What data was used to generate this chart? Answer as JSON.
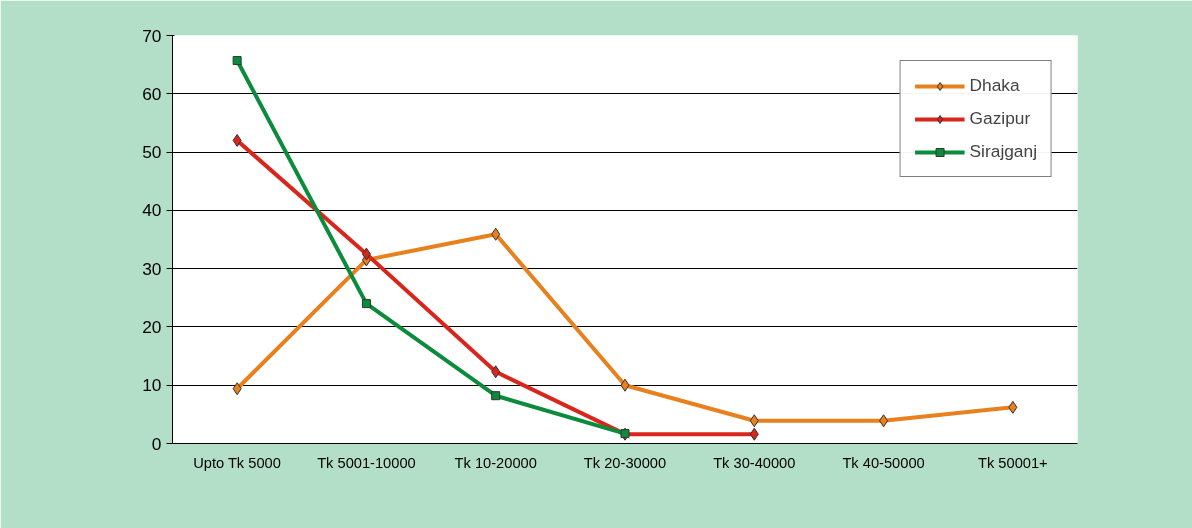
{
  "chart_data": {
    "type": "line",
    "categories": [
      "Upto Tk 5000",
      "Tk 5001-10000",
      "Tk 10-20000",
      "Tk 20-30000",
      "Tk 30-40000",
      "Tk 40-50000",
      "Tk 50001+"
    ],
    "series": [
      {
        "name": "Dhaka",
        "color": "#e8801e",
        "marker": "diamond",
        "values": [
          9.4,
          31.5,
          35.9,
          10,
          3.9,
          3.9,
          6.2
        ]
      },
      {
        "name": "Gazipur",
        "color": "#d9261c",
        "marker": "diamond",
        "values": [
          52,
          32.5,
          12.3,
          1.6,
          1.6,
          null,
          null
        ]
      },
      {
        "name": "Sirajganj",
        "color": "#0a8c3c",
        "marker": "square",
        "values": [
          65.7,
          24,
          8.2,
          1.7,
          null,
          null,
          null
        ]
      }
    ],
    "ylim": [
      0,
      70
    ],
    "yticks": [
      0,
      10,
      20,
      30,
      40,
      50,
      60,
      70
    ],
    "grid": "y",
    "legend": "top right",
    "line_style": "solid"
  }
}
